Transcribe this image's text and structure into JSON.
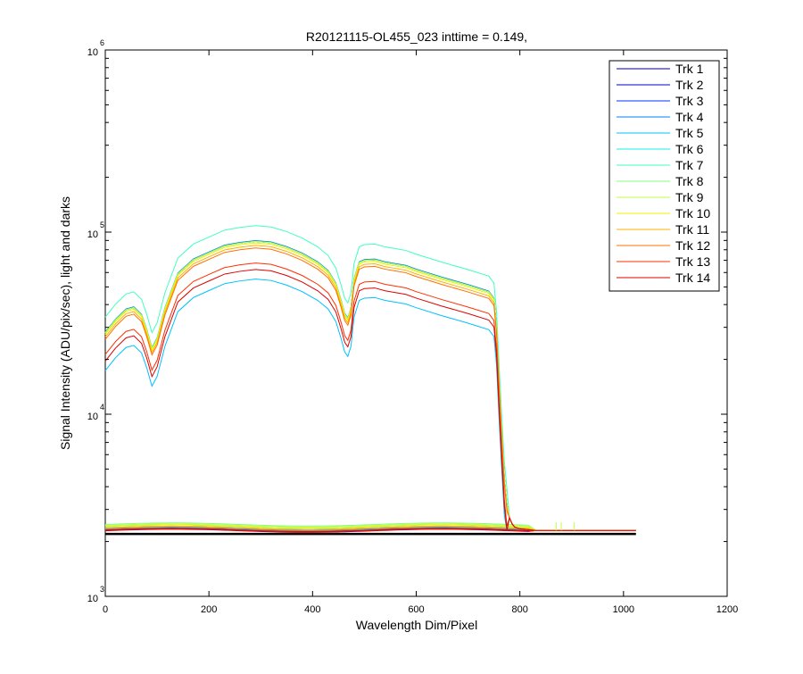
{
  "chart_data": {
    "type": "line",
    "title": "R20121115-OL455_023 inttime = 0.149,",
    "xlabel": "Wavelength Dim/Pixel",
    "ylabel": "Signal Intensity (ADU/pix/sec), light and darks",
    "xlim": [
      0,
      1200
    ],
    "ylim": [
      1000,
      1000000
    ],
    "yscale": "log",
    "x_ticks": [
      {
        "value": 0,
        "label": "0"
      },
      {
        "value": 200,
        "label": "200"
      },
      {
        "value": 400,
        "label": "400"
      },
      {
        "value": 600,
        "label": "600"
      },
      {
        "value": 800,
        "label": "800"
      },
      {
        "value": 1000,
        "label": "1000"
      },
      {
        "value": 1200,
        "label": "1200"
      }
    ],
    "y_ticks": [
      {
        "value": 1000,
        "base": "10",
        "exp": "3"
      },
      {
        "value": 10000,
        "base": "10",
        "exp": "4"
      },
      {
        "value": 100000,
        "base": "10",
        "exp": "5"
      },
      {
        "value": 1000000,
        "base": "10",
        "exp": "6"
      }
    ],
    "grid": false,
    "legend_position": "top-right",
    "light_shape": {
      "x": [
        0,
        20,
        40,
        55,
        70,
        80,
        90,
        100,
        115,
        140,
        170,
        200,
        230,
        260,
        290,
        320,
        350,
        380,
        410,
        430,
        445,
        455,
        462,
        468,
        474,
        480,
        490,
        500,
        520,
        540,
        560,
        580,
        600,
        650,
        700,
        740,
        750,
        755,
        760,
        765,
        770,
        775,
        780,
        785,
        790,
        800,
        830,
        1024
      ],
      "y": [
        28000,
        33000,
        37500,
        38500,
        35000,
        29000,
        23000,
        26000,
        38000,
        59000,
        70500,
        77000,
        84000,
        87000,
        89000,
        87500,
        82500,
        76000,
        68000,
        61000,
        52000,
        42000,
        35500,
        33500,
        38000,
        55000,
        68000,
        70000,
        70500,
        68000,
        66500,
        65000,
        62000,
        56000,
        51000,
        47000,
        43000,
        30000,
        15000,
        8000,
        4500,
        3200,
        2700,
        2500,
        2400,
        2350,
        2300,
        2300
      ]
    },
    "series": [
      {
        "name": "Trk 1",
        "color": "#00008f",
        "scale": 1.0,
        "dark_level": 2310
      },
      {
        "name": "Trk 2",
        "color": "#0000cf",
        "scale": 1.0,
        "dark_level": 2320
      },
      {
        "name": "Trk 3",
        "color": "#0030ff",
        "scale": 1.0,
        "dark_level": 2330
      },
      {
        "name": "Trk 4",
        "color": "#0080ff",
        "scale": 1.01,
        "dark_level": 2340
      },
      {
        "name": "Trk 5",
        "color": "#00c0ff",
        "scale": 0.62,
        "dark_level": 2350
      },
      {
        "name": "Trk 6",
        "color": "#10f0e0",
        "scale": 1.0,
        "dark_level": 2380
      },
      {
        "name": "Trk 7",
        "color": "#40ffc0",
        "scale": 1.22,
        "dark_level": 2420
      },
      {
        "name": "Trk 8",
        "color": "#80ff80",
        "scale": 1.0,
        "dark_level": 2480
      },
      {
        "name": "Trk 9",
        "color": "#c0ff40",
        "scale": 1.0,
        "dark_level": 2450
      },
      {
        "name": "Trk 10",
        "color": "#f0f000",
        "scale": 0.98,
        "dark_level": 2420
      },
      {
        "name": "Trk 11",
        "color": "#ffb000",
        "scale": 0.95,
        "dark_level": 2380
      },
      {
        "name": "Trk 12",
        "color": "#ff7000",
        "scale": 0.92,
        "dark_level": 2340
      },
      {
        "name": "Trk 13",
        "color": "#ff3000",
        "scale": 0.76,
        "dark_level": 2300
      },
      {
        "name": "Trk 14",
        "color": "#df0000",
        "scale": 0.7,
        "dark_level": 2290
      }
    ],
    "dark_baseline": {
      "color": "#000000",
      "x": [
        0,
        1024
      ],
      "y": [
        2200,
        2200
      ]
    }
  }
}
